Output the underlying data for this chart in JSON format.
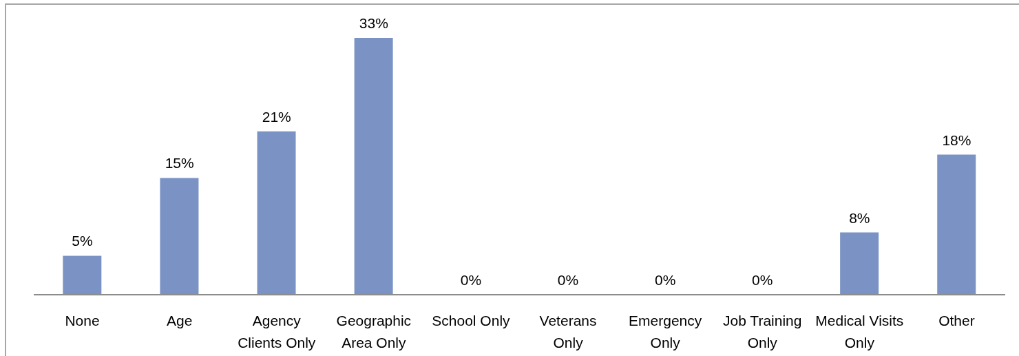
{
  "chart_data": {
    "type": "bar",
    "categories": [
      "None",
      "Age",
      "Agency Clients Only",
      "Geographic Area Only",
      "School Only",
      "Veterans Only",
      "Emergency Only",
      "Job Training Only",
      "Medical Visits Only",
      "Other"
    ],
    "values": [
      5,
      15,
      21,
      33,
      0,
      0,
      0,
      0,
      8,
      18
    ],
    "value_labels": [
      "5%",
      "15%",
      "21%",
      "33%",
      "0%",
      "0%",
      "0%",
      "0%",
      "8%",
      "18%"
    ],
    "color": "#7b93c4"
  }
}
